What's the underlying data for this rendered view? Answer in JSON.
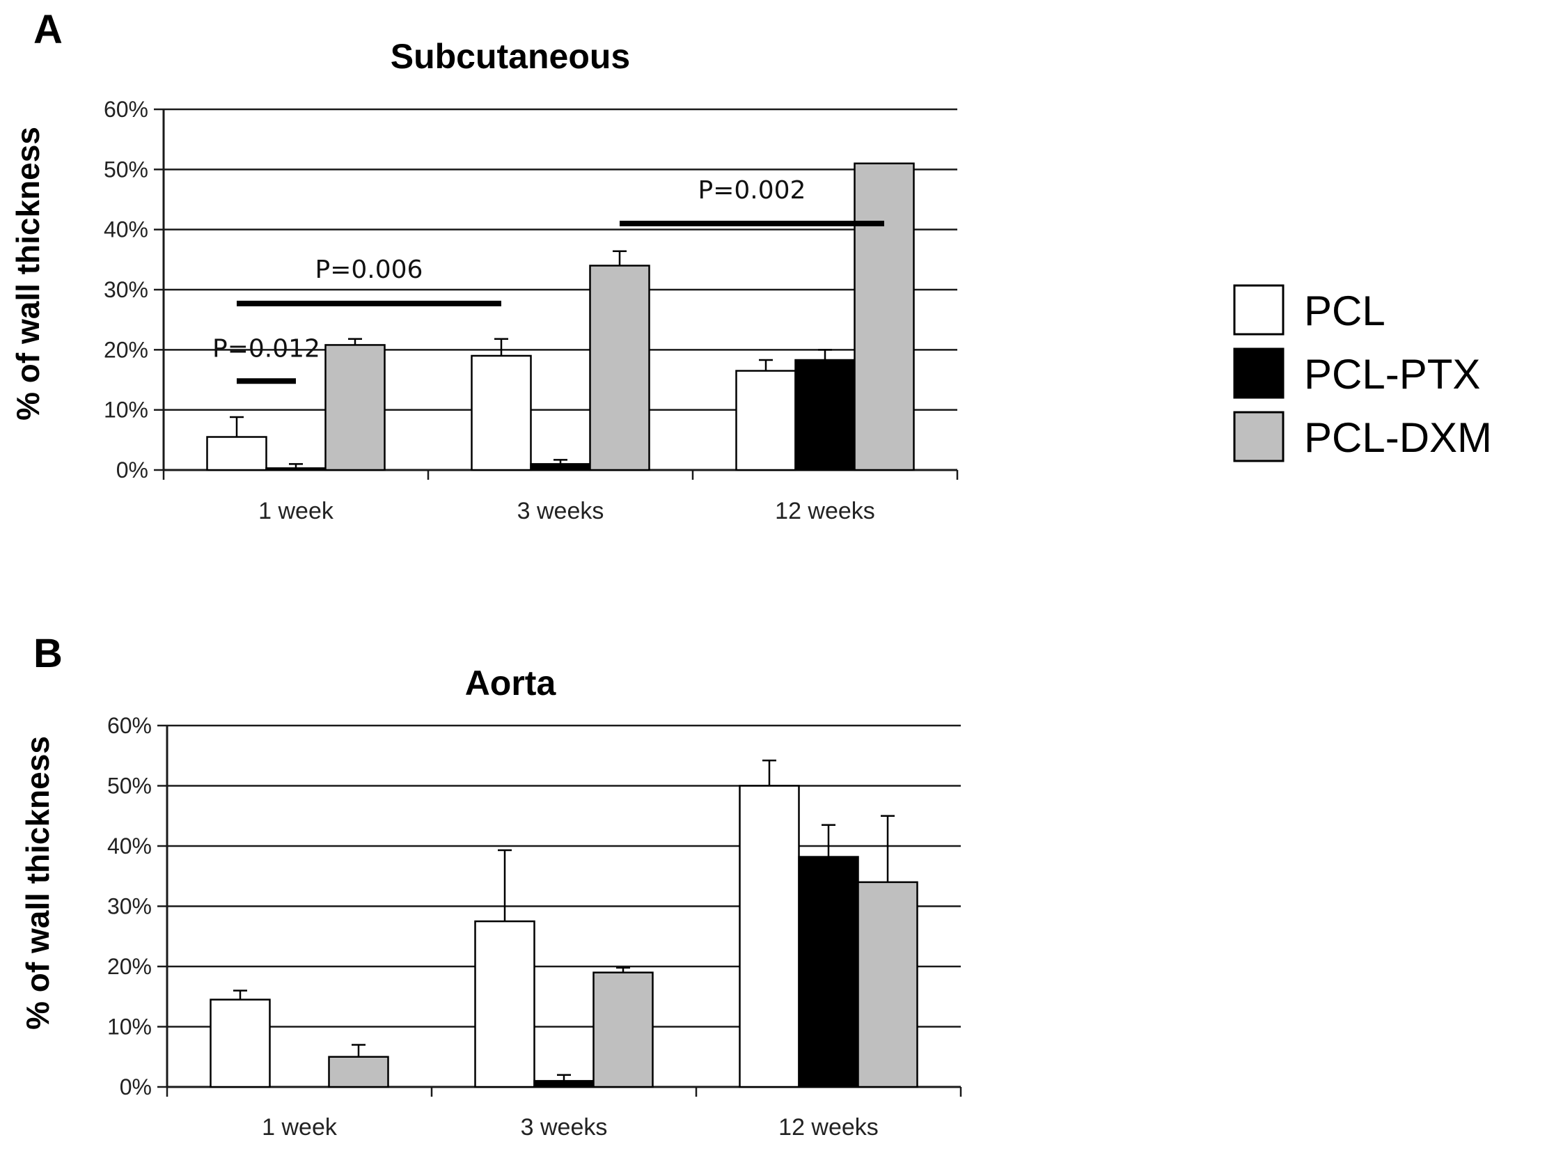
{
  "legend": [
    {
      "label": "PCL",
      "color": "#ffffff"
    },
    {
      "label": "PCL-PTX",
      "color": "#000000"
    },
    {
      "label": "PCL-DXM",
      "color": "#bfbfbf"
    }
  ],
  "chart_data": [
    {
      "panel": "A",
      "type": "bar",
      "title": "Subcutaneous",
      "ylabel": "% of wall thickness",
      "ylim": [
        0,
        60
      ],
      "yticks": [
        "0%",
        "10%",
        "20%",
        "30%",
        "40%",
        "50%",
        "60%"
      ],
      "categories": [
        "1 week",
        "3 weeks",
        "12 weeks"
      ],
      "grid": true,
      "series": [
        {
          "name": "PCL",
          "color": "#ffffff",
          "values": [
            5.5,
            19,
            16.5
          ],
          "errors": [
            3.3,
            2.8,
            1.8
          ]
        },
        {
          "name": "PCL-PTX",
          "color": "#000000",
          "values": [
            0.3,
            1,
            18.3
          ],
          "errors": [
            0.7,
            0.7,
            1.7
          ]
        },
        {
          "name": "PCL-DXM",
          "color": "#bfbfbf",
          "values": [
            20.8,
            34,
            51
          ],
          "errors": [
            1,
            2.4,
            0
          ]
        }
      ],
      "annotations": [
        {
          "text": "P=0.012",
          "from": [
            0,
            0
          ],
          "to": [
            0,
            1
          ],
          "bar_y": 14.8,
          "text_y": 20.3
        },
        {
          "text": "P=0.006",
          "from": [
            0,
            0
          ],
          "to": [
            1,
            0
          ],
          "bar_y": 27.7,
          "text_y": 33.5
        },
        {
          "text": "P=0.002",
          "from": [
            1,
            2
          ],
          "to": [
            2,
            2
          ],
          "bar_y": 41,
          "text_y": 46.7
        }
      ]
    },
    {
      "panel": "B",
      "type": "bar",
      "title": "Aorta",
      "ylabel": "% of wall thickness",
      "ylim": [
        0,
        60
      ],
      "yticks": [
        "0%",
        "10%",
        "20%",
        "30%",
        "40%",
        "50%",
        "60%"
      ],
      "categories": [
        "1 week",
        "3 weeks",
        "12 weeks"
      ],
      "grid": true,
      "series": [
        {
          "name": "PCL",
          "color": "#ffffff",
          "values": [
            14.5,
            27.5,
            50
          ],
          "errors": [
            1.5,
            11.8,
            4.2
          ]
        },
        {
          "name": "PCL-PTX",
          "color": "#000000",
          "values": [
            0,
            1,
            38.2
          ],
          "errors": [
            0,
            1,
            5.3
          ]
        },
        {
          "name": "PCL-DXM",
          "color": "#bfbfbf",
          "values": [
            5,
            19,
            34
          ],
          "errors": [
            2,
            0.8,
            11
          ]
        }
      ],
      "annotations": []
    }
  ]
}
